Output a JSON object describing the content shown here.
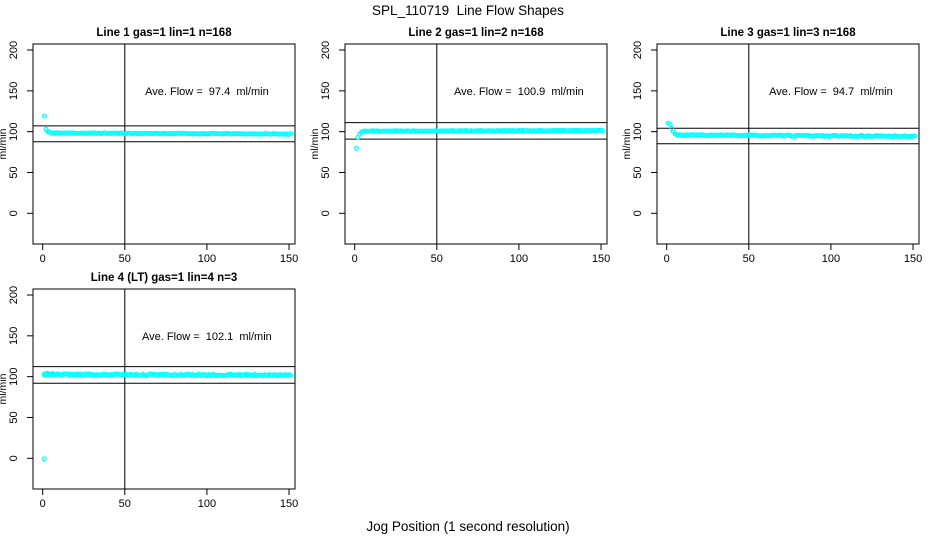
{
  "figure": {
    "title": "SPL_110719  Line Flow Shapes",
    "xlabel": "Jog Position (1 second resolution)",
    "bg_color": "#FFFFFF",
    "axis_color": "#000000",
    "point_color": "#00FFFF"
  },
  "chart_data": [
    {
      "type": "scatter",
      "title": "Line 1 gas=1 lin=1 n=168",
      "gas": 1,
      "lin": 1,
      "n": 168,
      "ylabel": "ml/min",
      "annotation": "Ave. Flow =  97.4  ml/min",
      "ave_flow_ml_min": 97.4,
      "x_ticks": [
        0,
        50,
        100,
        150
      ],
      "y_ticks": [
        0,
        50,
        100,
        150,
        200
      ],
      "xlim": [
        -6,
        153
      ],
      "ylim": [
        -37,
        207
      ],
      "vline_x": 50,
      "ref_lines_y": [
        107.1,
        87.7
      ],
      "annotation_at": {
        "x": 100,
        "y": 150
      },
      "points": [
        [
          1,
          119
        ],
        [
          2,
          103
        ],
        [
          3,
          100.5
        ],
        [
          4,
          99.5
        ]
      ],
      "band": {
        "x_from": 5,
        "x_to": 151,
        "step": 1,
        "y_from": 98.3,
        "y_to": 97.1,
        "jitter": 0.45,
        "seed": 11
      }
    },
    {
      "type": "scatter",
      "title": "Line 2 gas=1 lin=2 n=168",
      "gas": 1,
      "lin": 2,
      "n": 168,
      "ylabel": "ml/min",
      "annotation": "Ave. Flow =  100.9  ml/min",
      "ave_flow_ml_min": 100.9,
      "x_ticks": [
        0,
        50,
        100,
        150
      ],
      "y_ticks": [
        0,
        50,
        100,
        150,
        200
      ],
      "xlim": [
        -6,
        153
      ],
      "ylim": [
        -37,
        207
      ],
      "vline_x": 50,
      "ref_lines_y": [
        111.0,
        90.8
      ],
      "annotation_at": {
        "x": 100,
        "y": 150
      },
      "points": [
        [
          1,
          79.5
        ],
        [
          2,
          93
        ],
        [
          3,
          97
        ],
        [
          4,
          99
        ],
        [
          5,
          100.2
        ]
      ],
      "band": {
        "x_from": 6,
        "x_to": 151,
        "step": 1,
        "y_from": 100.7,
        "y_to": 101.3,
        "jitter": 0.4,
        "seed": 22
      }
    },
    {
      "type": "scatter",
      "title": "Line 3 gas=1 lin=3 n=168",
      "gas": 1,
      "lin": 3,
      "n": 168,
      "ylabel": "ml/min",
      "annotation": "Ave. Flow =  94.7  ml/min",
      "ave_flow_ml_min": 94.7,
      "x_ticks": [
        0,
        50,
        100,
        150
      ],
      "y_ticks": [
        0,
        50,
        100,
        150,
        200
      ],
      "xlim": [
        -6,
        153
      ],
      "ylim": [
        -37,
        207
      ],
      "vline_x": 50,
      "ref_lines_y": [
        104.2,
        85.2
      ],
      "annotation_at": {
        "x": 100,
        "y": 150
      },
      "points": [
        [
          1,
          110.5
        ],
        [
          2,
          109
        ],
        [
          3,
          104
        ],
        [
          4,
          100
        ],
        [
          5,
          97.5
        ],
        [
          6,
          96.3
        ]
      ],
      "band": {
        "x_from": 7,
        "x_to": 151,
        "step": 1,
        "y_from": 95.8,
        "y_to": 94.2,
        "jitter": 0.7,
        "seed": 33
      }
    },
    {
      "type": "scatter",
      "title": "Line 4 (LT) gas=1 lin=4 n=3",
      "gas": 1,
      "lin": 4,
      "n": 3,
      "ylabel": "ml/min",
      "annotation": "Ave. Flow =  102.1  ml/min",
      "ave_flow_ml_min": 102.1,
      "x_ticks": [
        0,
        50,
        100,
        150
      ],
      "y_ticks": [
        0,
        50,
        100,
        150,
        200
      ],
      "xlim": [
        -6,
        153
      ],
      "ylim": [
        -37,
        207
      ],
      "vline_x": 50,
      "ref_lines_y": [
        112.3,
        91.9
      ],
      "annotation_at": {
        "x": 100,
        "y": 150
      },
      "points": [
        [
          1,
          -0.5
        ],
        [
          1,
          102
        ],
        [
          2,
          103.5
        ],
        [
          3,
          104
        ],
        [
          4,
          103.2
        ],
        [
          6,
          103.8
        ],
        [
          9,
          103.3
        ],
        [
          13,
          103.6
        ],
        [
          17,
          103.2
        ],
        [
          21,
          103.4
        ]
      ],
      "band": {
        "x_from": 1,
        "x_to": 151,
        "step": 1,
        "y_from": 102.6,
        "y_to": 101.7,
        "jitter": 1.0,
        "seed": 44
      }
    }
  ]
}
